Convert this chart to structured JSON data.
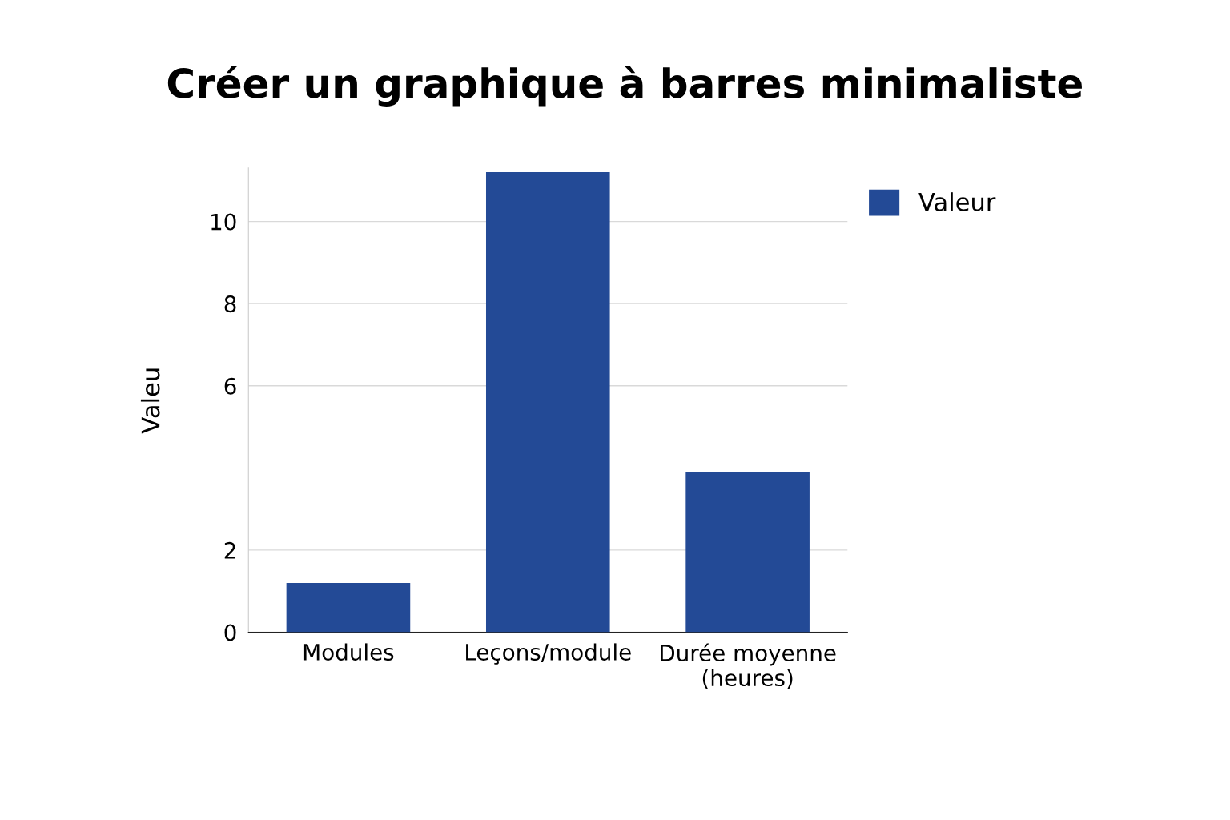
{
  "chart_data": {
    "type": "bar",
    "title": "Créer un graphique à barres minimaliste",
    "ylabel": "Valeu",
    "categories": [
      "Modules",
      "Leçons/module",
      "Durée moyenne\n(heures)"
    ],
    "series": [
      {
        "name": "Valeur",
        "color": "#234a96",
        "values": [
          1.2,
          11.2,
          3.9
        ]
      }
    ],
    "ylim": [
      0,
      11.3
    ],
    "yticks": [
      0,
      2,
      6,
      8,
      10
    ],
    "grid": "y",
    "legend": "top right"
  }
}
